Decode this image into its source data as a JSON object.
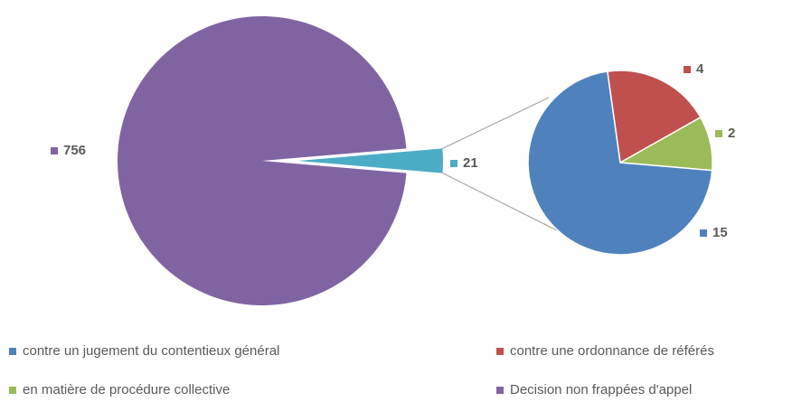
{
  "chart_data": {
    "type": "pie",
    "categories": [
      "contre un jugement du contentieux général",
      "contre une ordonnance de référés",
      "en matière de procédure collective",
      "Decision non frappées d'appel"
    ],
    "values": [
      15,
      4,
      2,
      756
    ],
    "colors": [
      "#4f81bd",
      "#c0504d",
      "#9bbb59",
      "#8064a2"
    ],
    "combined": {
      "value": 21,
      "color": "#4bacc6"
    }
  }
}
